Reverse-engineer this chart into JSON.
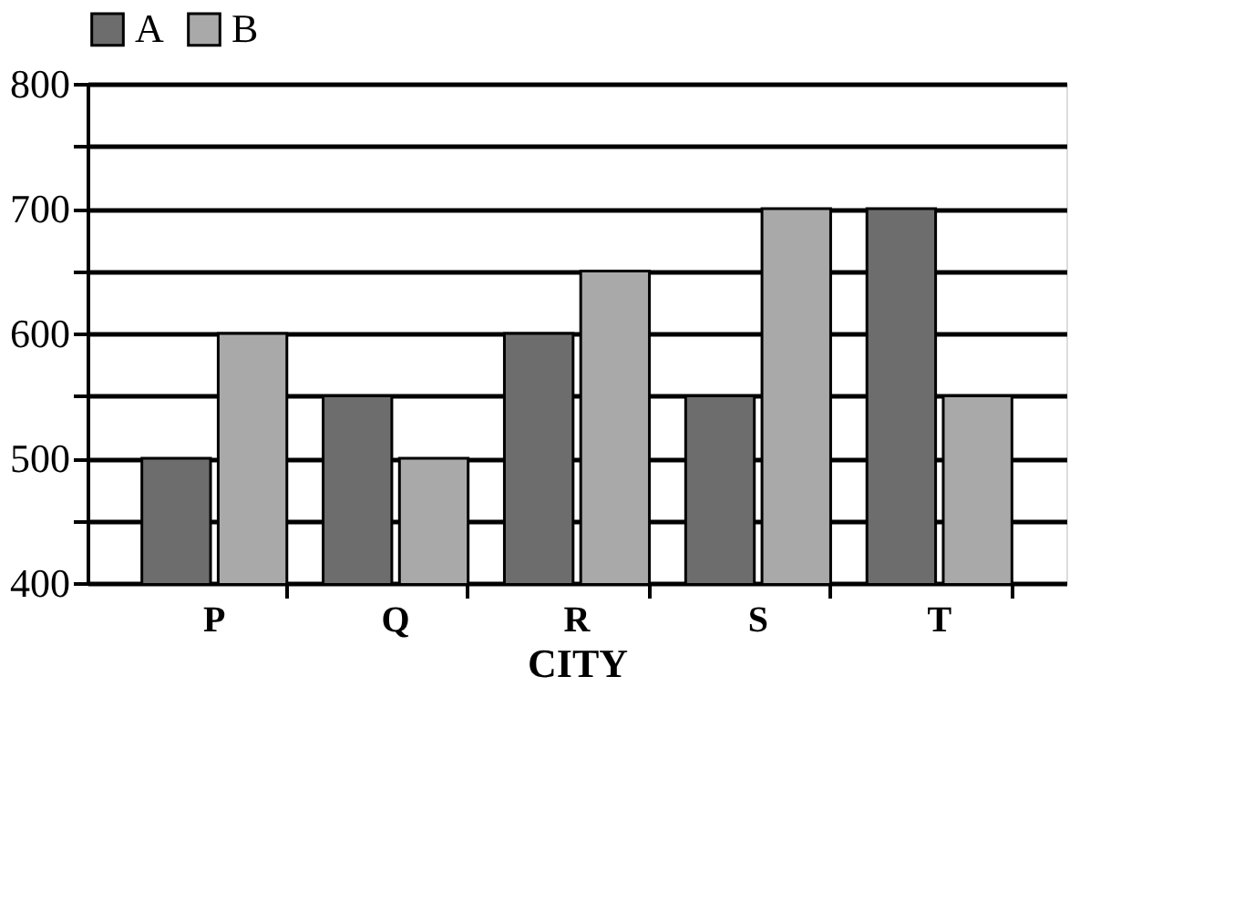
{
  "chart_data": {
    "type": "bar",
    "xlabel": "CITY",
    "categories": [
      "P",
      "Q",
      "R",
      "S",
      "T"
    ],
    "series": [
      {
        "name": "A",
        "color": "#6d6d6d",
        "values": [
          500,
          550,
          600,
          550,
          700
        ]
      },
      {
        "name": "B",
        "color": "#a9a9a9",
        "values": [
          600,
          500,
          650,
          700,
          550
        ]
      }
    ],
    "ylim": [
      400,
      800
    ],
    "yticks": [
      400,
      {
        "value": 450,
        "label": null
      },
      500,
      {
        "value": 550,
        "label": null
      },
      600,
      {
        "value": 650,
        "label": null
      },
      700,
      {
        "value": 750,
        "label": null
      },
      800
    ],
    "grid": "y",
    "legend": "top"
  }
}
